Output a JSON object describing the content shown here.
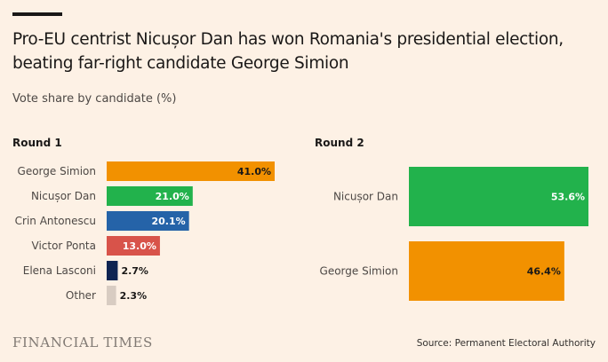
{
  "header": {
    "title": "Pro-EU centrist Nicușor Dan has won Romania's presidential election, beating far-right candidate George Simion",
    "subtitle": "Vote share by candidate (%)"
  },
  "footer": {
    "logo": "FINANCIAL TIMES",
    "source": "Source: Permanent Electoral Authority"
  },
  "chart_data": [
    {
      "type": "bar",
      "orientation": "horizontal",
      "title": "Round 1",
      "xlim": [
        0,
        41
      ],
      "categories": [
        "George Simion",
        "Nicușor Dan",
        "Crin Antonescu",
        "Victor Ponta",
        "Elena Lasconi",
        "Other"
      ],
      "values": [
        41.0,
        21.0,
        20.1,
        13.0,
        2.7,
        2.3
      ],
      "labels": [
        "41.0%",
        "21.0%",
        "20.1%",
        "13.0%",
        "2.7%",
        "2.3%"
      ],
      "colors": [
        "#f29100",
        "#22b24c",
        "#2563a8",
        "#d8534a",
        "#0f2452",
        "#d8ccc2"
      ]
    },
    {
      "type": "bar",
      "orientation": "horizontal",
      "title": "Round 2",
      "xlim": [
        0,
        53.6
      ],
      "categories": [
        "Nicușor Dan",
        "George Simion"
      ],
      "values": [
        53.6,
        46.4
      ],
      "labels": [
        "53.6%",
        "46.4%"
      ],
      "colors": [
        "#22b24c",
        "#f29100"
      ]
    }
  ]
}
